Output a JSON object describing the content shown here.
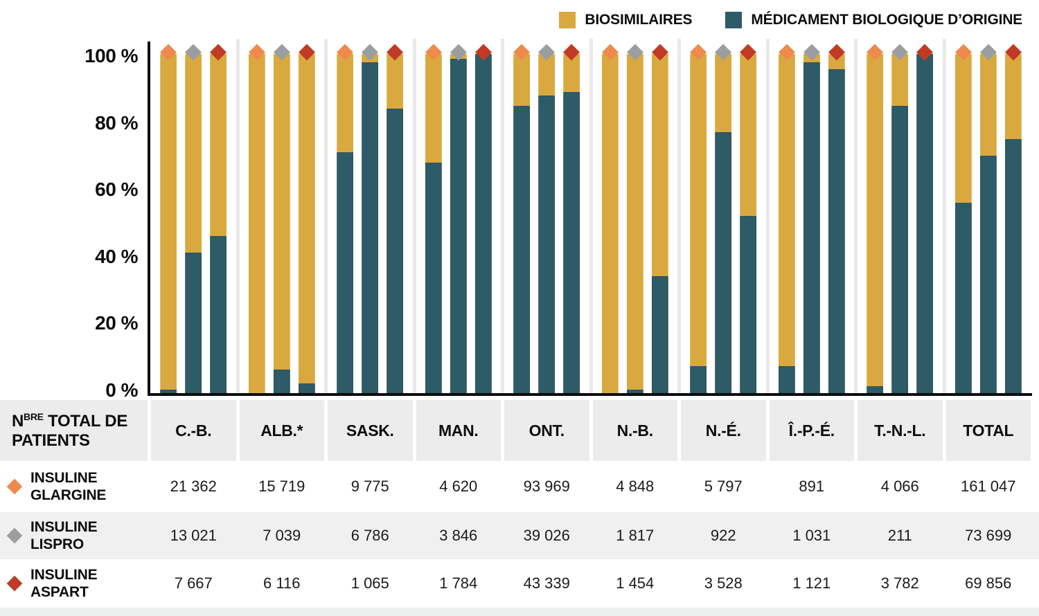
{
  "legend": {
    "items": [
      {
        "label": "BIOSIMILAIRES",
        "color": "#D9A940"
      },
      {
        "label": "MÉDICAMENT BIOLOGIQUE D’ORIGINE",
        "color": "#2E5B68"
      }
    ]
  },
  "chart_data": {
    "type": "stacked-bar-100",
    "title": "",
    "unit": "%",
    "legend_position": "top",
    "grid": "off",
    "colors": {
      "biosimilaires": "#D9A940",
      "origine": "#2E5B68"
    },
    "categories": [
      "C.-B.",
      "ALB.*",
      "SASK.",
      "MAN.",
      "ONT.",
      "N.-B.",
      "N.-É.",
      "Î.-P.-É.",
      "T.-N.-L.",
      "TOTAL"
    ],
    "yticks": [
      {
        "label": "100 %",
        "value": 100
      },
      {
        "label": "80 %",
        "value": 80
      },
      {
        "label": "60 %",
        "value": 60
      },
      {
        "label": "40 %",
        "value": 40
      },
      {
        "label": "20 %",
        "value": 20
      },
      {
        "label": "0 %",
        "value": 0
      }
    ],
    "ylim": [
      0,
      100
    ],
    "series": [
      {
        "name": "Insuline glargine",
        "marker_name": "insulin-glargine-marker",
        "marker": "diamond",
        "marker_color": "#EE8A4E",
        "origine_pct": [
          1,
          0,
          72,
          69,
          86,
          0,
          8,
          8,
          2,
          57
        ],
        "biosimilaires_pct": [
          99,
          100,
          28,
          31,
          14,
          100,
          92,
          92,
          98,
          43
        ],
        "full_cover": []
      },
      {
        "name": "Insuline lispro",
        "marker_name": "insulin-lispro-marker",
        "marker": "diamond",
        "marker_color": "#9B9EA0",
        "origine_pct": [
          42,
          7,
          99,
          100,
          89,
          1,
          78,
          99,
          86,
          71
        ],
        "biosimilaires_pct": [
          58,
          93,
          1,
          0,
          11,
          99,
          22,
          1,
          14,
          29
        ],
        "full_cover": []
      },
      {
        "name": "Insuline aspart",
        "marker_name": "insulin-aspart-marker",
        "marker": "diamond",
        "marker_color": "#C13A25",
        "origine_pct": [
          47,
          3,
          85,
          100,
          90,
          35,
          53,
          97,
          100,
          76
        ],
        "biosimilaires_pct": [
          53,
          97,
          15,
          0,
          10,
          65,
          47,
          3,
          0,
          24
        ],
        "full_cover": [
          3,
          8
        ]
      }
    ]
  },
  "table": {
    "header_label": {
      "prefix": "N",
      "sup": "BRE",
      "rest": " TOTAL DE PATIENTS"
    },
    "columns": [
      "C.-B.",
      "ALB.*",
      "SASK.",
      "MAN.",
      "ONT.",
      "N.-B.",
      "N.-É.",
      "Î.-P.-É.",
      "T.-N.-L.",
      "TOTAL"
    ],
    "rows": [
      {
        "label": "INSULINE GLARGINE",
        "marker_name": "insulin-glargine-marker",
        "marker_color": "#EE8A4E",
        "values": [
          "21 362",
          "15 719",
          "9 775",
          "4 620",
          "93 969",
          "4 848",
          "5 797",
          "891",
          "4 066",
          "161 047"
        ]
      },
      {
        "label": "INSULINE LISPRO",
        "marker_name": "insulin-lispro-marker",
        "marker_color": "#9B9EA0",
        "values": [
          "13 021",
          "7 039",
          "6 786",
          "3 846",
          "39 026",
          "1 817",
          "922",
          "1 031",
          "211",
          "73 699"
        ]
      },
      {
        "label": "INSULINE ASPART",
        "marker_name": "insulin-aspart-marker",
        "marker_color": "#C13A25",
        "values": [
          "7 667",
          "6 116",
          "1 065",
          "1 784",
          "43 339",
          "1 454",
          "3 528",
          "1 121",
          "3 782",
          "69 856"
        ]
      }
    ]
  }
}
